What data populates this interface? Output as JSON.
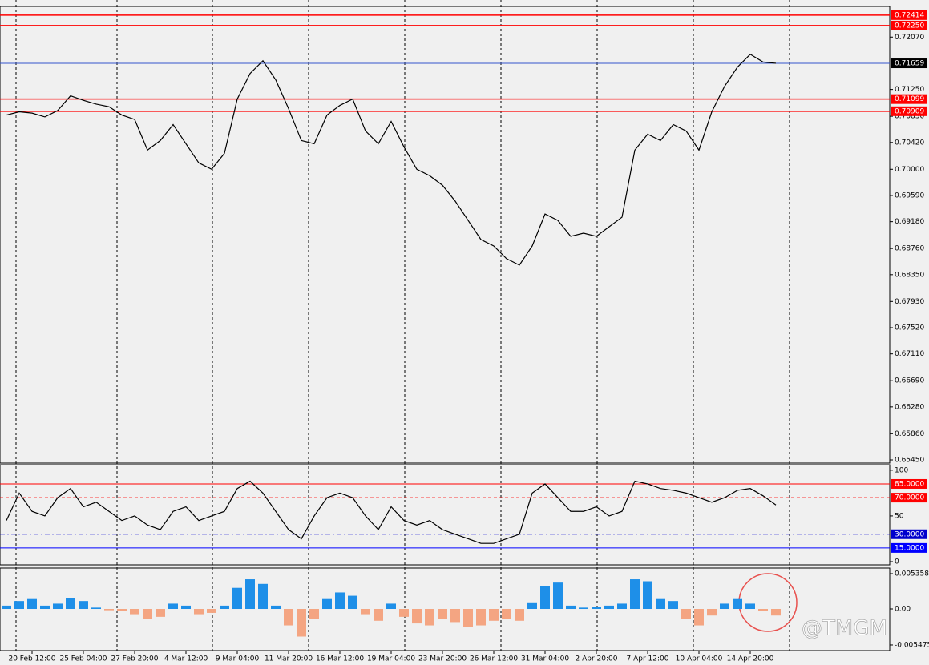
{
  "watermark": "@TMGM",
  "chart_data": [
    {
      "type": "line",
      "categories": [
        null,
        null,
        "20 Feb 12:00",
        null,
        null,
        null,
        "25 Feb 04:00",
        null,
        null,
        null,
        "27 Feb 20:00",
        null,
        null,
        null,
        "4 Mar 12:00",
        null,
        null,
        null,
        "9 Mar 04:00",
        null,
        null,
        null,
        "11 Mar 20:00",
        null,
        null,
        null,
        "16 Mar 12:00",
        null,
        null,
        null,
        "19 Mar 04:00",
        null,
        null,
        null,
        "23 Mar 20:00",
        null,
        null,
        null,
        "26 Mar 12:00",
        null,
        null,
        null,
        "31 Mar 04:00",
        null,
        null,
        null,
        "2 Apr 20:00",
        null,
        null,
        null,
        "7 Apr 12:00",
        null,
        null,
        null,
        "10 Apr 04:00",
        null,
        null,
        null,
        "14 Apr 20:00",
        null,
        null
      ],
      "series": [
        {
          "color": "#000000",
          "values": [
            0.7085,
            0.709,
            0.7088,
            0.7082,
            0.7092,
            0.7115,
            0.7108,
            0.7102,
            0.7098,
            0.7085,
            0.7078,
            0.703,
            0.7045,
            0.707,
            0.704,
            0.701,
            0.7,
            0.7025,
            0.711,
            0.715,
            0.717,
            0.714,
            0.7095,
            0.7045,
            0.704,
            0.7085,
            0.71,
            0.711,
            0.706,
            0.704,
            0.7075,
            0.7035,
            0.7,
            0.699,
            0.6975,
            0.695,
            0.692,
            0.689,
            0.688,
            0.686,
            0.685,
            0.688,
            0.693,
            0.692,
            0.6895,
            0.69,
            0.6895,
            0.691,
            0.6925,
            0.703,
            0.7055,
            0.7045,
            0.707,
            0.706,
            0.703,
            0.709,
            0.713,
            0.716,
            0.718,
            0.7168,
            0.7166
          ]
        }
      ],
      "ylim": [
        0.654,
        0.7255
      ],
      "yticks": [
        {
          "value": 0.7207,
          "label": "0.72070"
        },
        {
          "value": 0.7125,
          "label": "0.71250"
        },
        {
          "value": 0.7083,
          "label": "0.70830"
        },
        {
          "value": 0.7042,
          "label": "0.70420"
        },
        {
          "value": 0.7,
          "label": "0.70000"
        },
        {
          "value": 0.6959,
          "label": "0.69590"
        },
        {
          "value": 0.6918,
          "label": "0.69180"
        },
        {
          "value": 0.6876,
          "label": "0.68760"
        },
        {
          "value": 0.6835,
          "label": "0.68350"
        },
        {
          "value": 0.6793,
          "label": "0.67930"
        },
        {
          "value": 0.6752,
          "label": "0.67520"
        },
        {
          "value": 0.6711,
          "label": "0.67110"
        },
        {
          "value": 0.6669,
          "label": "0.66690"
        },
        {
          "value": 0.6628,
          "label": "0.66280"
        },
        {
          "value": 0.6586,
          "label": "0.65860"
        },
        {
          "value": 0.6545,
          "label": "0.65450"
        }
      ],
      "levels": [
        {
          "value": 0.72414,
          "label": "0.72414",
          "color": "#ff0000"
        },
        {
          "value": 0.7225,
          "label": "0.72250",
          "color": "#ff0000"
        },
        {
          "value": 0.71659,
          "label": "0.71659",
          "color": "#000000"
        },
        {
          "value": 0.71099,
          "label": "0.71099",
          "color": "#ff0000"
        },
        {
          "value": 0.70909,
          "label": "0.70909",
          "color": "#ff0000"
        }
      ]
    },
    {
      "type": "line",
      "series": [
        {
          "color": "#000000",
          "values": [
            45,
            75,
            55,
            50,
            70,
            80,
            60,
            65,
            55,
            45,
            50,
            40,
            35,
            55,
            60,
            45,
            50,
            55,
            80,
            88,
            75,
            55,
            35,
            25,
            50,
            70,
            75,
            70,
            50,
            35,
            60,
            45,
            40,
            45,
            35,
            30,
            25,
            20,
            20,
            25,
            30,
            75,
            85,
            70,
            55,
            55,
            60,
            50,
            55,
            88,
            85,
            80,
            78,
            75,
            70,
            65,
            70,
            78,
            80,
            72,
            62
          ]
        }
      ],
      "ylim": [
        -3.5,
        106
      ],
      "yticks": [
        0,
        50,
        100
      ],
      "levels": [
        {
          "value": 85,
          "label": "85.0000",
          "color": "#ff0000"
        },
        {
          "value": 70,
          "label": "70.0000",
          "color": "#ff0000"
        },
        {
          "value": 30,
          "label": "30.0000",
          "color": "#0000cd"
        },
        {
          "value": 15,
          "label": "15.0000",
          "color": "#0000ff"
        }
      ]
    },
    {
      "type": "bar",
      "values": [
        0.0005,
        0.0012,
        0.0015,
        0.0005,
        0.0008,
        0.0016,
        0.0012,
        0.0002,
        -0.0002,
        -0.0003,
        -0.0008,
        -0.0015,
        -0.0012,
        0.0008,
        0.0005,
        -0.0008,
        -0.0006,
        0.0005,
        0.0032,
        0.0045,
        0.0038,
        0.0005,
        -0.0025,
        -0.0042,
        -0.0015,
        0.0015,
        0.0025,
        0.002,
        -0.0008,
        -0.0018,
        0.0008,
        -0.0012,
        -0.0022,
        -0.0025,
        -0.0015,
        -0.002,
        -0.0028,
        -0.0025,
        -0.0018,
        -0.0015,
        -0.0018,
        0.001,
        0.0035,
        0.004,
        0.0005,
        0.0002,
        0.0003,
        0.0005,
        0.0008,
        0.0045,
        0.0042,
        0.0015,
        0.0012,
        -0.0015,
        -0.0025,
        -0.001,
        0.0008,
        0.0015,
        0.0008,
        -0.0003,
        -0.001
      ],
      "colors": {
        "up": "#1e8fe8",
        "down": "#f4a582"
      },
      "ylim": [
        -0.00633,
        0.00621
      ],
      "yticks": [
        0.0053585,
        {
          "value": 0,
          "label": "0.00"
        },
        -0.005475
      ]
    }
  ]
}
